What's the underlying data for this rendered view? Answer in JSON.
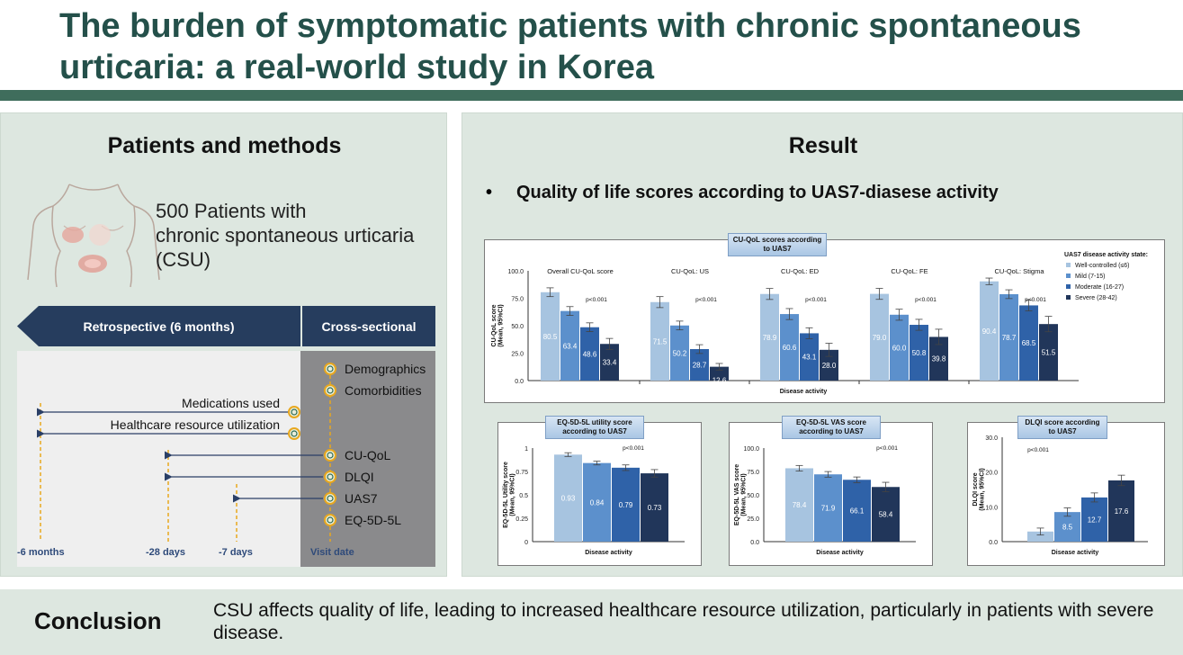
{
  "title": "The burden of symptomatic patients with chronic spontaneous urticaria: a real-world study in Korea",
  "left_panel": {
    "heading": "Patients and methods",
    "patients_line1": "500 Patients with",
    "patients_line2": "chronic spontaneous urticaria",
    "patients_line3": "(CSU)",
    "retro_label": "Retrospective (6 months)",
    "cross_label": "Cross-sectional",
    "items_right": [
      "Demographics",
      "Comorbidities",
      "CU-QoL",
      "DLQI",
      "UAS7",
      "EQ-5D-5L"
    ],
    "items_left": [
      "Medications used",
      "Healthcare resource utilization"
    ],
    "axis_labels": [
      "-6 months",
      "-28 days",
      "-7 days",
      "Visit date"
    ]
  },
  "right_panel": {
    "heading": "Result",
    "bullet": "•",
    "subheading": "Quality of life scores according to UAS7-diasese activity"
  },
  "colors": {
    "well": "#a7c4e0",
    "mild": "#5c90cc",
    "moderate": "#2f62a8",
    "severe": "#21365a"
  },
  "chart_data": [
    {
      "type": "bar",
      "title": "CU-QoL scores according to UAS7",
      "ylabel": "CU-QoL score (Mean, 95%CI)",
      "xlabel": "Disease activity",
      "ylim": [
        0,
        100
      ],
      "yticks": [
        "100.0",
        "75.0",
        "50.0",
        "25.0",
        "0.0"
      ],
      "legend_title": "UAS7 disease activity state:",
      "legend_position": "top-right",
      "series_names": [
        "Well-controlled (≤6)",
        "Mild (7-15)",
        "Moderate (16-27)",
        "Severe (28-42)"
      ],
      "groups": [
        {
          "label": "Overall CU-QoL score",
          "values": [
            80.5,
            63.4,
            48.6,
            33.4
          ],
          "value_labels": [
            "80.5",
            "63.4",
            "48.6",
            "33.4"
          ],
          "err": [
            4,
            4,
            4,
            5
          ],
          "p": "p<0.001"
        },
        {
          "label": "CU-QoL: US",
          "values": [
            71.5,
            50.2,
            28.7,
            12.6
          ],
          "value_labels": [
            "71.5",
            "50.2",
            "28.7",
            "12.6"
          ],
          "err": [
            5,
            4,
            4,
            3
          ],
          "p": "p<0.001"
        },
        {
          "label": "CU-QoL: ED",
          "values": [
            78.9,
            60.6,
            43.1,
            28.0
          ],
          "value_labels": [
            "78.9",
            "60.6",
            "43.1",
            "28.0"
          ],
          "err": [
            5,
            5,
            5,
            6
          ],
          "p": "p<0.001"
        },
        {
          "label": "CU-QoL: FE",
          "values": [
            79.0,
            60.0,
            50.8,
            39.8
          ],
          "value_labels": [
            "79.0",
            "60.0",
            "50.8",
            "39.8"
          ],
          "err": [
            5,
            5,
            5,
            7
          ],
          "p": "p<0.001"
        },
        {
          "label": "CU-QoL: Stigma",
          "values": [
            90.4,
            78.7,
            68.5,
            51.5
          ],
          "value_labels": [
            "90.4",
            "78.7",
            "68.5",
            "51.5"
          ],
          "err": [
            3,
            4,
            5,
            7
          ],
          "p": "p<0.001"
        }
      ]
    },
    {
      "type": "bar",
      "title": "EQ-5D-5L utility score according to UAS7",
      "ylabel": "EQ-5D-5L Utility score (Mean, 95%CI)",
      "xlabel": "Disease activity",
      "ylim": [
        0,
        1
      ],
      "yticks": [
        "1",
        "0.75",
        "0.5",
        "0.25",
        "0"
      ],
      "p": "p<0.001",
      "values": [
        0.93,
        0.84,
        0.79,
        0.73
      ],
      "value_labels": [
        "0.93",
        "0.84",
        "0.79",
        "0.73"
      ],
      "err": [
        0.02,
        0.02,
        0.03,
        0.04
      ]
    },
    {
      "type": "bar",
      "title": "EQ-5D-5L VAS score according to UAS7",
      "ylabel": "EQ-5D-5L VAS score (Mean, 95%CI)",
      "xlabel": "Disease activity",
      "ylim": [
        0,
        100
      ],
      "yticks": [
        "100.0",
        "75.0",
        "50.0",
        "25.0",
        "0.0"
      ],
      "p": "p<0.001",
      "values": [
        78.4,
        71.9,
        66.1,
        58.4
      ],
      "value_labels": [
        "78.4",
        "71.9",
        "66.1",
        "58.4"
      ],
      "err": [
        3,
        3,
        3,
        5
      ]
    },
    {
      "type": "bar",
      "title": "DLQI score according to UAS7",
      "ylabel": "DLQI score (Mean, 95%CI)",
      "xlabel": "Disease activity",
      "ylim": [
        0,
        30
      ],
      "yticks": [
        "30.0",
        "20.0",
        "10.0",
        "0.0"
      ],
      "p": "p<0.001",
      "values": [
        2.9,
        8.5,
        12.7,
        17.6
      ],
      "value_labels": [
        "",
        "8.5",
        "12.7",
        "17.6"
      ],
      "err": [
        1.0,
        1.2,
        1.3,
        1.5
      ]
    }
  ],
  "conclusion": {
    "label": "Conclusion",
    "text": "CSU affects quality of life, leading to increased healthcare resource utilization, particularly in patients with severe disease."
  }
}
